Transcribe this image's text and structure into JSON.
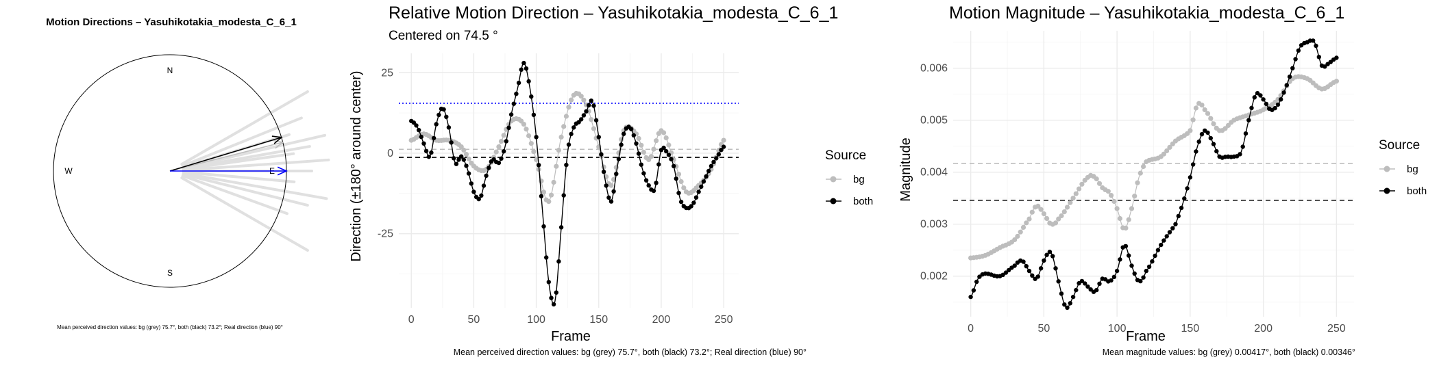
{
  "colors": {
    "bg": "#bdbdbd",
    "both": "#000000",
    "real": "#0000ff",
    "rays": "#e0e0e0"
  },
  "chart_data": [
    {
      "type": "polar",
      "title": "Motion Directions – Yasuhikotakia_modesta_C_6_1",
      "compass": {
        "n": "N",
        "e": "E",
        "s": "S",
        "w": "W"
      },
      "arrows": [
        {
          "name": "bg",
          "angle_deg": 75.7,
          "color": "#bdbdbd"
        },
        {
          "name": "both",
          "angle_deg": 73.2,
          "color": "#000000"
        },
        {
          "name": "real",
          "angle_deg": 90,
          "color": "#0000ff"
        }
      ],
      "rays_deg": [
        60,
        68,
        73,
        77,
        80,
        82,
        86,
        90,
        95,
        100,
        104,
        110,
        120
      ],
      "caption": "Mean perceived direction values: bg (grey) 75.7°, both (black) 73.2°; Real direction (blue) 90°"
    },
    {
      "type": "line",
      "title": "Relative Motion Direction – Yasuhikotakia_modesta_C_6_1",
      "subtitle": "Centered on  74.5 °",
      "xlabel": "Frame",
      "ylabel": "Direction (±180° around center)",
      "xlim": [
        -10,
        262
      ],
      "ylim": [
        -48,
        31
      ],
      "xticks": [
        0,
        50,
        100,
        150,
        200,
        250
      ],
      "yticks": [
        -25,
        0,
        25
      ],
      "hlines": [
        {
          "y": 15.5,
          "color": "#0000ff",
          "style": "dotted"
        },
        {
          "y": 1.2,
          "color": "#bdbdbd",
          "style": "dashed"
        },
        {
          "y": -1.3,
          "color": "#000000",
          "style": "dashed"
        }
      ],
      "legend": {
        "title": "Source",
        "position": "right"
      },
      "series": [
        {
          "name": "bg",
          "color": "#bdbdbd",
          "x": [
            0,
            10,
            20,
            30,
            40,
            50,
            60,
            70,
            80,
            90,
            100,
            110,
            120,
            130,
            140,
            150,
            160,
            170,
            180,
            190,
            200,
            210,
            220,
            230,
            240,
            250
          ],
          "y": [
            4,
            6,
            4,
            4,
            2,
            -4,
            -5,
            2,
            10,
            9,
            -2,
            -15,
            5,
            18,
            15,
            2,
            -10,
            7,
            6,
            -2,
            7,
            -2,
            -12,
            -10,
            -5,
            4
          ]
        },
        {
          "name": "both",
          "color": "#000000",
          "x": [
            0,
            5,
            10,
            15,
            20,
            25,
            30,
            35,
            40,
            45,
            50,
            55,
            60,
            65,
            70,
            75,
            80,
            85,
            90,
            95,
            100,
            105,
            110,
            115,
            120,
            125,
            130,
            135,
            140,
            145,
            150,
            155,
            160,
            165,
            170,
            175,
            180,
            185,
            190,
            195,
            200,
            205,
            210,
            215,
            220,
            225,
            230,
            235,
            240,
            245,
            250
          ],
          "y": [
            10,
            8,
            3,
            -1,
            9,
            14,
            8,
            -3,
            -1,
            -5,
            -12,
            -14,
            -7,
            -2,
            -3,
            2,
            12,
            20,
            28,
            20,
            5,
            -18,
            -40,
            -46,
            -23,
            0,
            8,
            10,
            13,
            16,
            5,
            -8,
            -15,
            -4,
            6,
            8,
            3,
            -5,
            -10,
            -11,
            1,
            0,
            -4,
            -14,
            -17,
            -16,
            -12,
            -8,
            -4,
            -1,
            2
          ]
        }
      ],
      "caption": "Mean perceived direction values: bg (grey) 75.7°, both (black) 73.2°; Real direction (blue) 90°"
    },
    {
      "type": "line",
      "title": "Motion Magnitude – Yasuhikotakia_modesta_C_6_1",
      "xlabel": "Frame",
      "ylabel": "Magnitude",
      "xlim": [
        -12,
        262
      ],
      "ylim": [
        0.00122,
        0.00672
      ],
      "xticks": [
        0,
        50,
        100,
        150,
        200,
        250
      ],
      "yticks": [
        0.002,
        0.003,
        0.004,
        0.005,
        0.006
      ],
      "hlines": [
        {
          "y": 0.00417,
          "color": "#bdbdbd",
          "style": "dashed"
        },
        {
          "y": 0.00346,
          "color": "#000000",
          "style": "dashed"
        }
      ],
      "legend": {
        "title": "Source",
        "position": "right"
      },
      "series": [
        {
          "name": "bg",
          "color": "#bdbdbd",
          "x": [
            0,
            10,
            20,
            30,
            40,
            45,
            50,
            55,
            60,
            70,
            80,
            85,
            90,
            95,
            100,
            105,
            110,
            115,
            120,
            130,
            140,
            150,
            155,
            160,
            170,
            180,
            190,
            200,
            210,
            220,
            230,
            240,
            250
          ],
          "y": [
            0.00235,
            0.0024,
            0.00255,
            0.0027,
            0.0031,
            0.00335,
            0.0032,
            0.003,
            0.0031,
            0.0035,
            0.0039,
            0.0039,
            0.0037,
            0.0036,
            0.0033,
            0.0029,
            0.0033,
            0.0039,
            0.0042,
            0.0043,
            0.0046,
            0.0048,
            0.0053,
            0.0052,
            0.0048,
            0.005,
            0.0051,
            0.0052,
            0.0054,
            0.0058,
            0.0058,
            0.0056,
            0.00575
          ]
        },
        {
          "name": "both",
          "color": "#000000",
          "x": [
            0,
            5,
            10,
            20,
            30,
            35,
            40,
            45,
            50,
            55,
            60,
            65,
            70,
            75,
            80,
            85,
            90,
            95,
            100,
            105,
            110,
            115,
            120,
            130,
            140,
            145,
            150,
            155,
            160,
            165,
            170,
            175,
            180,
            185,
            190,
            195,
            200,
            205,
            210,
            215,
            220,
            225,
            230,
            235,
            240,
            245,
            250
          ],
          "y": [
            0.0016,
            0.00195,
            0.00205,
            0.002,
            0.0022,
            0.0023,
            0.0021,
            0.00195,
            0.0023,
            0.00245,
            0.0019,
            0.0014,
            0.0016,
            0.0019,
            0.0018,
            0.0017,
            0.00195,
            0.0019,
            0.0021,
            0.0026,
            0.0022,
            0.0019,
            0.0021,
            0.0026,
            0.003,
            0.0034,
            0.0039,
            0.0045,
            0.0048,
            0.0046,
            0.0043,
            0.0043,
            0.0043,
            0.0044,
            0.005,
            0.0055,
            0.0054,
            0.0052,
            0.0053,
            0.0056,
            0.006,
            0.0064,
            0.0065,
            0.0065,
            0.00605,
            0.0061,
            0.0062
          ]
        }
      ],
      "caption": "Mean magnitude values: bg (grey) 0.00417°, both (black) 0.00346°"
    }
  ]
}
